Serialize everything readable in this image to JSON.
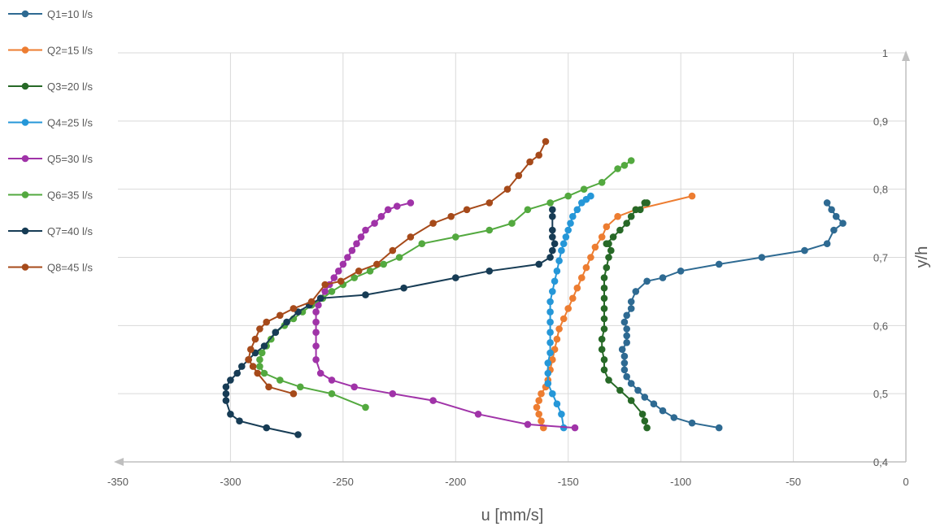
{
  "chart_data": {
    "type": "line",
    "xlabel": "u [mm/s]",
    "ylabel": "y/h",
    "xlim": [
      -350,
      0
    ],
    "ylim": [
      0.4,
      1
    ],
    "x_ticks": [
      "-350",
      "-300",
      "-250",
      "-200",
      "-150",
      "-100",
      "-50",
      "0"
    ],
    "y_ticks": [
      "0,4",
      "0,5",
      "0,6",
      "0,7",
      "0,8",
      "0,9",
      "1"
    ],
    "grid": true,
    "legend_position": "left",
    "series": [
      {
        "name": "Q1=10 l/s",
        "color": "#2e6a92",
        "x": [
          -83,
          -95,
          -103,
          -108,
          -112,
          -116,
          -119,
          -122,
          -124,
          -125,
          -125,
          -125,
          -126,
          -124,
          -124,
          -124,
          -125,
          -124,
          -122,
          -122,
          -120,
          -115,
          -108,
          -100,
          -83,
          -64,
          -45,
          -35,
          -32,
          -28,
          -31,
          -33,
          -35
        ],
        "y": [
          0.45,
          0.457,
          0.465,
          0.475,
          0.485,
          0.495,
          0.505,
          0.515,
          0.525,
          0.535,
          0.545,
          0.555,
          0.565,
          0.575,
          0.585,
          0.595,
          0.605,
          0.615,
          0.625,
          0.635,
          0.65,
          0.665,
          0.67,
          0.68,
          0.69,
          0.7,
          0.71,
          0.72,
          0.74,
          0.75,
          0.76,
          0.77,
          0.78
        ]
      },
      {
        "name": "Q2=15 l/s",
        "color": "#ed7d31",
        "x": [
          -161,
          -162,
          -163,
          -164,
          -163,
          -162,
          -160,
          -159,
          -158,
          -157,
          -156,
          -155,
          -154,
          -152,
          -150,
          -148,
          -146,
          -144,
          -142,
          -140,
          -138,
          -135,
          -133,
          -128,
          -120,
          -95
        ],
        "y": [
          0.45,
          0.46,
          0.47,
          0.48,
          0.49,
          0.5,
          0.51,
          0.52,
          0.535,
          0.55,
          0.565,
          0.58,
          0.595,
          0.61,
          0.625,
          0.64,
          0.655,
          0.67,
          0.685,
          0.7,
          0.715,
          0.73,
          0.745,
          0.76,
          0.77,
          0.79
        ]
      },
      {
        "name": "Q3=20 l/s",
        "color": "#276927",
        "x": [
          -115,
          -116,
          -117,
          -122,
          -127,
          -132,
          -134,
          -134,
          -135,
          -135,
          -134,
          -134,
          -134,
          -134,
          -134,
          -134,
          -133,
          -132,
          -131,
          -132,
          -133,
          -130,
          -127,
          -124,
          -122,
          -120,
          -118,
          -116,
          -115
        ],
        "y": [
          0.45,
          0.46,
          0.47,
          0.49,
          0.505,
          0.52,
          0.535,
          0.55,
          0.565,
          0.58,
          0.595,
          0.61,
          0.625,
          0.64,
          0.655,
          0.67,
          0.685,
          0.7,
          0.71,
          0.72,
          0.72,
          0.73,
          0.74,
          0.75,
          0.76,
          0.77,
          0.77,
          0.78,
          0.78
        ]
      },
      {
        "name": "Q4=25 l/s",
        "color": "#2597d8",
        "x": [
          -152,
          -153,
          -155,
          -157,
          -159,
          -159,
          -159,
          -158,
          -158,
          -158,
          -158,
          -158,
          -158,
          -157,
          -156,
          -155,
          -154,
          -153,
          -152,
          -151,
          -150,
          -149,
          -148,
          -146,
          -144,
          -142,
          -140
        ],
        "y": [
          0.45,
          0.47,
          0.485,
          0.5,
          0.515,
          0.53,
          0.545,
          0.56,
          0.575,
          0.59,
          0.605,
          0.62,
          0.635,
          0.65,
          0.665,
          0.68,
          0.695,
          0.71,
          0.72,
          0.73,
          0.74,
          0.75,
          0.76,
          0.77,
          0.78,
          0.785,
          0.79
        ]
      },
      {
        "name": "Q5=30 l/s",
        "color": "#a033a8",
        "x": [
          -147,
          -168,
          -190,
          -210,
          -228,
          -245,
          -255,
          -260,
          -262,
          -262,
          -262,
          -262,
          -262,
          -261,
          -260,
          -258,
          -256,
          -254,
          -252,
          -250,
          -248,
          -246,
          -244,
          -242,
          -240,
          -236,
          -233,
          -230,
          -226,
          -220
        ],
        "y": [
          0.45,
          0.455,
          0.47,
          0.49,
          0.5,
          0.51,
          0.52,
          0.53,
          0.55,
          0.57,
          0.59,
          0.605,
          0.62,
          0.63,
          0.64,
          0.65,
          0.66,
          0.67,
          0.68,
          0.69,
          0.7,
          0.71,
          0.72,
          0.73,
          0.74,
          0.75,
          0.76,
          0.77,
          0.775,
          0.78
        ]
      },
      {
        "name": "Q6=35 l/s",
        "color": "#53a93f",
        "x": [
          -240,
          -255,
          -269,
          -278,
          -285,
          -287,
          -287,
          -286,
          -284,
          -282,
          -280,
          -276,
          -272,
          -268,
          -264,
          -259,
          -255,
          -250,
          -245,
          -238,
          -232,
          -225,
          -215,
          -200,
          -185,
          -175,
          -168,
          -158,
          -150,
          -143,
          -135,
          -128,
          -125,
          -122
        ],
        "y": [
          0.48,
          0.5,
          0.51,
          0.52,
          0.53,
          0.54,
          0.55,
          0.56,
          0.57,
          0.58,
          0.59,
          0.6,
          0.61,
          0.62,
          0.63,
          0.64,
          0.65,
          0.66,
          0.67,
          0.68,
          0.69,
          0.7,
          0.72,
          0.73,
          0.74,
          0.75,
          0.77,
          0.78,
          0.79,
          0.8,
          0.81,
          0.83,
          0.835,
          0.842
        ]
      },
      {
        "name": "Q7=40 l/s",
        "color": "#173c55",
        "x": [
          -270,
          -284,
          -296,
          -300,
          -302,
          -302,
          -302,
          -300,
          -297,
          -295,
          -292,
          -289,
          -285,
          -280,
          -275,
          -270,
          -265,
          -260,
          -240,
          -223,
          -200,
          -185,
          -163,
          -158,
          -157,
          -156,
          -157,
          -157,
          -157,
          -157
        ],
        "y": [
          0.44,
          0.45,
          0.46,
          0.47,
          0.49,
          0.5,
          0.51,
          0.52,
          0.53,
          0.54,
          0.55,
          0.56,
          0.57,
          0.59,
          0.605,
          0.62,
          0.63,
          0.64,
          0.645,
          0.655,
          0.67,
          0.68,
          0.69,
          0.7,
          0.71,
          0.72,
          0.73,
          0.74,
          0.76,
          0.77
        ]
      },
      {
        "name": "Q8=45 l/s",
        "color": "#a64a1a",
        "x": [
          -272,
          -283,
          -288,
          -290,
          -292,
          -291,
          -289,
          -287,
          -284,
          -278,
          -272,
          -264,
          -258,
          -251,
          -243,
          -235,
          -228,
          -220,
          -210,
          -202,
          -195,
          -185,
          -177,
          -172,
          -167,
          -163,
          -160
        ],
        "y": [
          0.5,
          0.51,
          0.53,
          0.54,
          0.55,
          0.565,
          0.58,
          0.595,
          0.605,
          0.615,
          0.625,
          0.635,
          0.66,
          0.665,
          0.68,
          0.69,
          0.71,
          0.73,
          0.75,
          0.76,
          0.77,
          0.78,
          0.8,
          0.82,
          0.84,
          0.85,
          0.87
        ]
      }
    ]
  }
}
